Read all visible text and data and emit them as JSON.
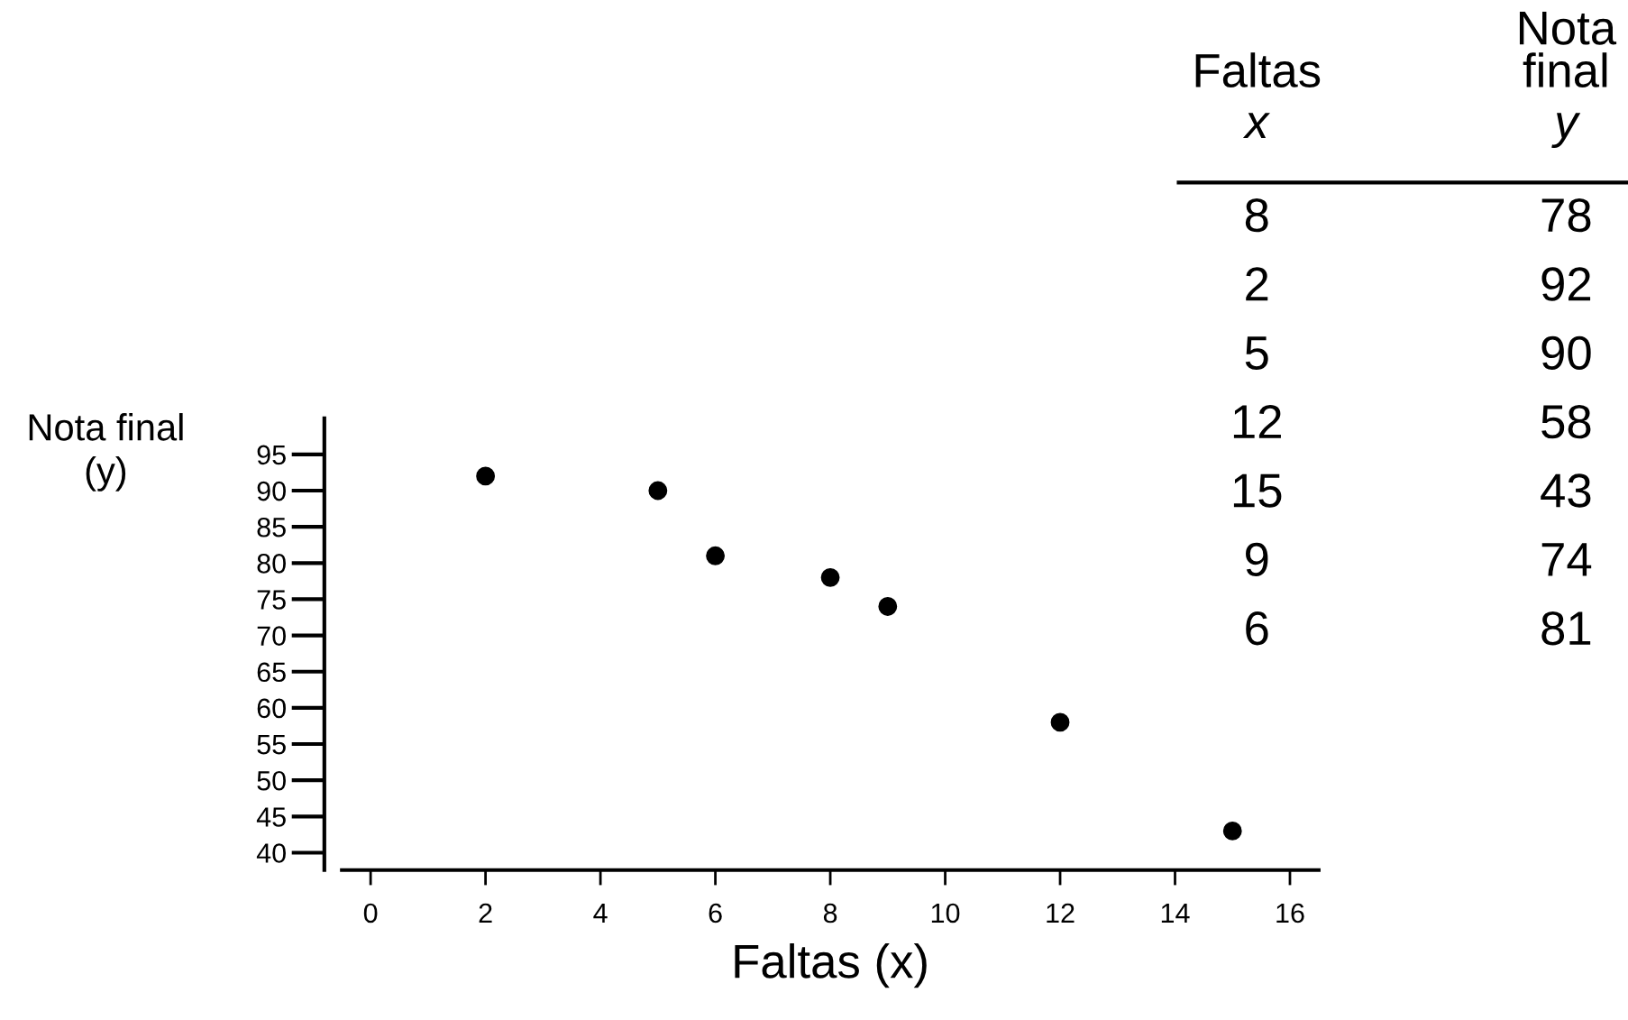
{
  "chart_data": [
    {
      "type": "scatter",
      "x": [
        8,
        2,
        5,
        12,
        15,
        9,
        6
      ],
      "values": [
        78,
        92,
        90,
        58,
        43,
        74,
        81
      ],
      "color": "#000000",
      "marker": "circle",
      "grid": false,
      "xlabel": "Faltas (x)",
      "ylabel": "Nota final\n(y)",
      "xlim": [
        -0.5,
        16.5
      ],
      "xticks": [
        0,
        2,
        4,
        6,
        8,
        10,
        12,
        14,
        16
      ],
      "ylim": [
        37.6,
        100
      ],
      "yticks": [
        40,
        45,
        50,
        55,
        60,
        65,
        70,
        75,
        80,
        85,
        90,
        95
      ]
    },
    {
      "type": "other",
      "annotations": [
        "Faltas",
        "x",
        "Nota\nfinal",
        "y",
        "8",
        "78",
        "2",
        "92",
        "5",
        "90",
        "12",
        "58",
        "15",
        "43",
        "9",
        "74",
        "6",
        "81"
      ]
    }
  ]
}
